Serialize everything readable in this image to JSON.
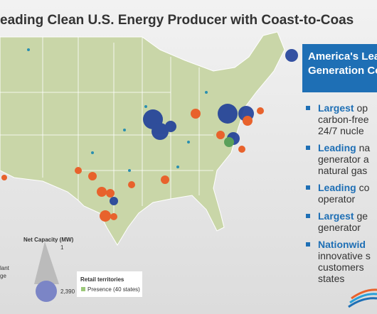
{
  "header": {
    "title": "eading Clean U.S. Energy Producer with Coast-to-Coas"
  },
  "panel": {
    "heading": [
      "America's Lea",
      "Generation Co"
    ],
    "bullets": [
      {
        "lead": "Largest",
        "first": "op",
        "more": [
          "carbon-free",
          "24/7 nucle"
        ]
      },
      {
        "lead": "Leading",
        "first": "na",
        "more": [
          "generator a",
          "natural gas"
        ]
      },
      {
        "lead": "Leading",
        "first": "co",
        "more": [
          "operator"
        ]
      },
      {
        "lead": "Largest",
        "first": "ge",
        "more": [
          "generator"
        ]
      },
      {
        "lead": "Nationwid",
        "more": [
          "innovative s",
          "customers",
          "states"
        ]
      }
    ]
  },
  "legend": {
    "capacity": {
      "title": "Net Capacity (MW)",
      "min": "1",
      "max": "2,390"
    },
    "plant_type": [
      "lant",
      "ge"
    ],
    "retail": {
      "title": "Retail territories",
      "presence": "Presence (40 states)"
    }
  }
}
